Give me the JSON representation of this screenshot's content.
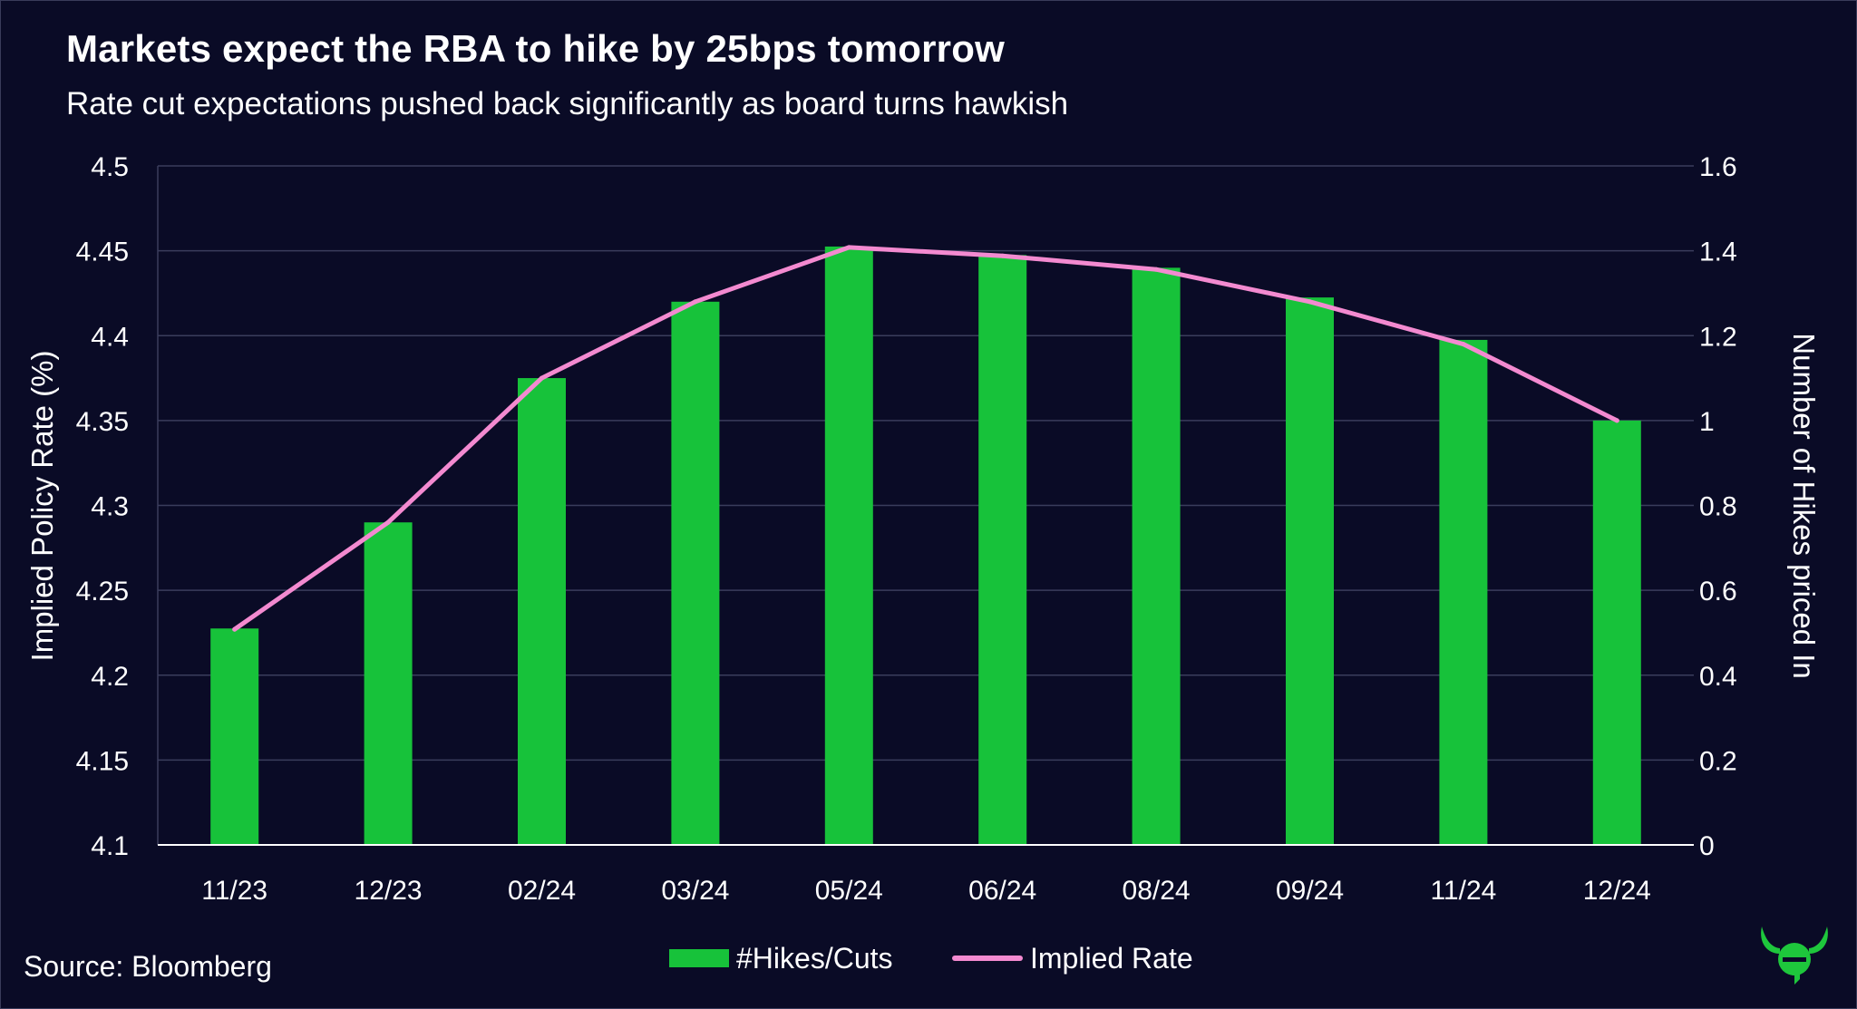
{
  "header": {
    "title": "Markets expect the RBA to hike by 25bps tomorrow",
    "subtitle": "Rate cut expectations pushed back significantly as board turns hawkish"
  },
  "footer": {
    "source": "Source: Bloomberg"
  },
  "legend": {
    "bars_label": "#Hikes/Cuts",
    "line_label": "Implied Rate"
  },
  "colors": {
    "background": "#0a0b26",
    "bar": "#17c23a",
    "line": "#f38ad0",
    "grid": "#3a3d5c",
    "logo": "#1ec73c"
  },
  "logo": {
    "icon": "bull-e-logo-icon"
  },
  "chart_data": {
    "type": "bar",
    "title": "Markets expect the RBA to hike by 25bps tomorrow",
    "subtitle": "Rate cut expectations pushed back significantly as board turns hawkish",
    "categories": [
      "11/23",
      "12/23",
      "02/24",
      "03/24",
      "05/24",
      "06/24",
      "08/24",
      "09/24",
      "11/24",
      "12/24"
    ],
    "series": [
      {
        "name": "#Hikes/Cuts",
        "type": "bar",
        "axis": "right",
        "values": [
          0.51,
          0.76,
          1.1,
          1.28,
          1.41,
          1.39,
          1.36,
          1.29,
          1.19,
          1.0
        ]
      },
      {
        "name": "Implied Rate",
        "type": "line",
        "axis": "left",
        "values": [
          4.227,
          4.29,
          4.375,
          4.42,
          4.452,
          4.447,
          4.439,
          4.42,
          4.395,
          4.35
        ]
      }
    ],
    "ylabel": "Implied Policy Rate (%)",
    "y2label": "Number of Hikes priced In",
    "ylim": [
      4.1,
      4.5
    ],
    "y2lim": [
      0,
      1.6
    ],
    "yticks": [
      "4.1",
      "4.15",
      "4.2",
      "4.25",
      "4.3",
      "4.35",
      "4.4",
      "4.45",
      "4.5"
    ],
    "y2ticks": [
      "0",
      "0.2",
      "0.4",
      "0.6",
      "0.8",
      "1",
      "1.2",
      "1.4",
      "1.6"
    ],
    "grid": true,
    "legend_position": "bottom"
  }
}
